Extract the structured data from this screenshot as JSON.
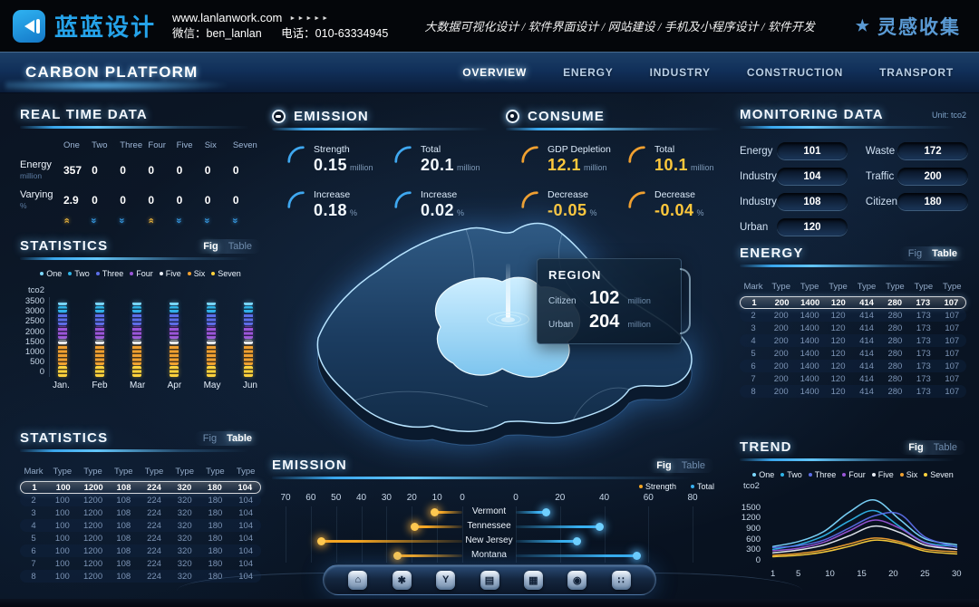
{
  "header": {
    "logo_text": "蓝蓝设计",
    "website": "www.lanlanwork.com",
    "arrows": "►►►►►",
    "wechat_label": "微信：ben_lanlan",
    "phone_label": "电话：010-63334945",
    "services": "大数据可视化设计 / 软件界面设计 / 网站建设 / 手机及小程序设计 / 软件开发",
    "collect_label": "灵感收集"
  },
  "navbar": {
    "title": "CARBON PLATFORM",
    "items": [
      {
        "label": "OVERVIEW",
        "active": true
      },
      {
        "label": "ENERGY",
        "active": false
      },
      {
        "label": "INDUSTRY",
        "active": false
      },
      {
        "label": "CONSTRUCTION",
        "active": false
      },
      {
        "label": "TRANSPORT",
        "active": false
      }
    ]
  },
  "toggle": {
    "fig": "Fig",
    "table": "Table"
  },
  "realtime": {
    "title": "REAL TIME DATA",
    "columns": [
      "One",
      "Two",
      "Three",
      "Four",
      "Five",
      "Six",
      "Seven"
    ],
    "rows": [
      {
        "label": "Energy",
        "unit": "million",
        "values": [
          "357",
          "0",
          "0",
          "0",
          "0",
          "0",
          "0"
        ]
      },
      {
        "label": "Varying",
        "unit": "%",
        "values": [
          "2.9",
          "0",
          "0",
          "0",
          "0",
          "0",
          "0"
        ]
      }
    ],
    "trend_arrows": [
      "up",
      "down",
      "down",
      "up",
      "down",
      "down",
      "down"
    ]
  },
  "emission_panel": {
    "title": "EMISSION",
    "accent": "#3fa8f0",
    "stats": [
      {
        "label": "Strength",
        "value": "0.15",
        "unit": "million"
      },
      {
        "label": "Total",
        "value": "20.1",
        "unit": "million"
      },
      {
        "label": "Increase",
        "value": "0.18",
        "unit": "%"
      },
      {
        "label": "Increase",
        "value": "0.02",
        "unit": "%"
      }
    ]
  },
  "consume_panel": {
    "title": "CONSUME",
    "accent": "#f0a030",
    "stats": [
      {
        "label": "GDP Depletion",
        "value": "12.1",
        "unit": "million"
      },
      {
        "label": "Total",
        "value": "10.1",
        "unit": "million"
      },
      {
        "label": "Decrease",
        "value": "-0.05",
        "unit": "%"
      },
      {
        "label": "Decrease",
        "value": "-0.04",
        "unit": "%"
      }
    ]
  },
  "monitoring": {
    "title": "MONITORING DATA",
    "unit_label": "Unit: tco2",
    "left": [
      {
        "label": "Energy",
        "value": "101"
      },
      {
        "label": "Industry",
        "value": "104"
      },
      {
        "label": "Industry",
        "value": "108"
      },
      {
        "label": "Urban",
        "value": "120"
      }
    ],
    "right": [
      {
        "label": "Waste",
        "value": "172"
      },
      {
        "label": "Traffic",
        "value": "200"
      },
      {
        "label": "Citizen",
        "value": "180"
      }
    ]
  },
  "region_popup": {
    "title": "REGION",
    "rows": [
      {
        "label": "Citizen",
        "value": "102",
        "unit": "million"
      },
      {
        "label": "Urban",
        "value": "204",
        "unit": "million"
      }
    ]
  },
  "statistics_fig": {
    "title": "STATISTICS",
    "active_view": "fig",
    "chart_data": {
      "type": "stacked-bar",
      "ylabel": "tco2",
      "ylim": [
        0,
        3500
      ],
      "yticks": [
        3500,
        3000,
        2500,
        2000,
        1500,
        1000,
        500,
        0
      ],
      "categories": [
        "Jan.",
        "Feb",
        "Mar",
        "Apr",
        "May",
        "Jun"
      ],
      "series": [
        {
          "name": "One",
          "color": "#7dd8ff",
          "values": [
            200,
            200,
            200,
            200,
            200,
            200
          ]
        },
        {
          "name": "Two",
          "color": "#2fb4e8",
          "values": [
            300,
            300,
            300,
            300,
            300,
            300
          ]
        },
        {
          "name": "Three",
          "color": "#5b6ee8",
          "values": [
            550,
            550,
            550,
            550,
            550,
            550
          ]
        },
        {
          "name": "Four",
          "color": "#9a55d8",
          "values": [
            600,
            600,
            600,
            600,
            600,
            600
          ]
        },
        {
          "name": "Five",
          "color": "#e9eef6",
          "values": [
            200,
            200,
            200,
            200,
            200,
            200
          ]
        },
        {
          "name": "Six",
          "color": "#f0a030",
          "values": [
            950,
            950,
            950,
            950,
            950,
            950
          ]
        },
        {
          "name": "Seven",
          "color": "#ffd23c",
          "values": [
            500,
            500,
            500,
            500,
            500,
            500
          ]
        }
      ]
    }
  },
  "statistics_table": {
    "title": "STATISTICS",
    "active_view": "table",
    "headers": [
      "Mark",
      "Type",
      "Type",
      "Type",
      "Type",
      "Type",
      "Type",
      "Type"
    ],
    "highlight_row": 0,
    "rows": [
      [
        "1",
        "100",
        "1200",
        "108",
        "224",
        "320",
        "180",
        "104"
      ],
      [
        "2",
        "100",
        "1200",
        "108",
        "224",
        "320",
        "180",
        "104"
      ],
      [
        "3",
        "100",
        "1200",
        "108",
        "224",
        "320",
        "180",
        "104"
      ],
      [
        "4",
        "100",
        "1200",
        "108",
        "224",
        "320",
        "180",
        "104"
      ],
      [
        "5",
        "100",
        "1200",
        "108",
        "224",
        "320",
        "180",
        "104"
      ],
      [
        "6",
        "100",
        "1200",
        "108",
        "224",
        "320",
        "180",
        "104"
      ],
      [
        "7",
        "100",
        "1200",
        "108",
        "224",
        "320",
        "180",
        "104"
      ],
      [
        "8",
        "100",
        "1200",
        "108",
        "224",
        "320",
        "180",
        "104"
      ]
    ]
  },
  "energy_table": {
    "title": "ENERGY",
    "active_view": "table",
    "headers": [
      "Mark",
      "Type",
      "Type",
      "Type",
      "Type",
      "Type",
      "Type",
      "Type"
    ],
    "highlight_row": 0,
    "rows": [
      [
        "1",
        "200",
        "1400",
        "120",
        "414",
        "280",
        "173",
        "107"
      ],
      [
        "2",
        "200",
        "1400",
        "120",
        "414",
        "280",
        "173",
        "107"
      ],
      [
        "3",
        "200",
        "1400",
        "120",
        "414",
        "280",
        "173",
        "107"
      ],
      [
        "4",
        "200",
        "1400",
        "120",
        "414",
        "280",
        "173",
        "107"
      ],
      [
        "5",
        "200",
        "1400",
        "120",
        "414",
        "280",
        "173",
        "107"
      ],
      [
        "6",
        "200",
        "1400",
        "120",
        "414",
        "280",
        "173",
        "107"
      ],
      [
        "7",
        "200",
        "1400",
        "120",
        "414",
        "280",
        "173",
        "107"
      ],
      [
        "8",
        "200",
        "1400",
        "120",
        "414",
        "280",
        "173",
        "107"
      ]
    ]
  },
  "emission_chart": {
    "title": "EMISSION",
    "active_view": "fig",
    "chart_data": {
      "type": "butterfly-bar",
      "categories": [
        "Vermont",
        "Tennessee",
        "New Jersey",
        "Montana"
      ],
      "series": [
        {
          "name": "Strength",
          "color": "#f5a623",
          "side": "left",
          "values": [
            11,
            19,
            56,
            26
          ]
        },
        {
          "name": "Total",
          "color": "#38b0f0",
          "side": "right",
          "values": [
            14,
            38,
            28,
            55
          ]
        }
      ],
      "left_ticks": [
        70,
        60,
        50,
        40,
        30,
        20,
        10,
        0
      ],
      "right_ticks": [
        0,
        20,
        40,
        60,
        80
      ],
      "left_max": 75,
      "right_max": 85
    }
  },
  "trend_chart": {
    "title": "TREND",
    "active_view": "fig",
    "chart_data": {
      "type": "line",
      "ylabel": "tco2",
      "ylim": [
        0,
        1800
      ],
      "yticks": [
        1500,
        1200,
        900,
        600,
        300,
        0
      ],
      "x": [
        1,
        5,
        9,
        13,
        17,
        21,
        25,
        30
      ],
      "xticks": [
        1,
        5,
        10,
        15,
        20,
        25,
        30
      ],
      "series": [
        {
          "name": "One",
          "color": "#7dd8ff",
          "values": [
            380,
            520,
            800,
            1350,
            1700,
            1150,
            600,
            430
          ]
        },
        {
          "name": "Two",
          "color": "#2fb4e8",
          "values": [
            300,
            430,
            680,
            1100,
            1400,
            950,
            500,
            380
          ]
        },
        {
          "name": "Three",
          "color": "#5b6ee8",
          "values": [
            350,
            400,
            560,
            900,
            1250,
            1300,
            650,
            360
          ]
        },
        {
          "name": "Four",
          "color": "#9a55d8",
          "values": [
            260,
            330,
            500,
            820,
            1130,
            900,
            480,
            300
          ]
        },
        {
          "name": "Five",
          "color": "#e9eef6",
          "values": [
            200,
            280,
            420,
            680,
            960,
            780,
            420,
            300
          ]
        },
        {
          "name": "Six",
          "color": "#f0a030",
          "values": [
            130,
            180,
            280,
            450,
            620,
            520,
            300,
            230
          ]
        },
        {
          "name": "Seven",
          "color": "#ffd23c",
          "values": [
            90,
            130,
            220,
            380,
            560,
            470,
            250,
            170
          ]
        }
      ]
    }
  },
  "dock": {
    "icons": [
      {
        "name": "home-icon",
        "glyph": "⌂"
      },
      {
        "name": "gear-icon",
        "glyph": "✱"
      },
      {
        "name": "y-badge-icon",
        "glyph": "Y"
      },
      {
        "name": "meter-icon",
        "glyph": "▤"
      },
      {
        "name": "board-icon",
        "glyph": "▦"
      },
      {
        "name": "nut-icon",
        "glyph": "◉"
      },
      {
        "name": "apps-icon",
        "glyph": "∷"
      }
    ]
  }
}
